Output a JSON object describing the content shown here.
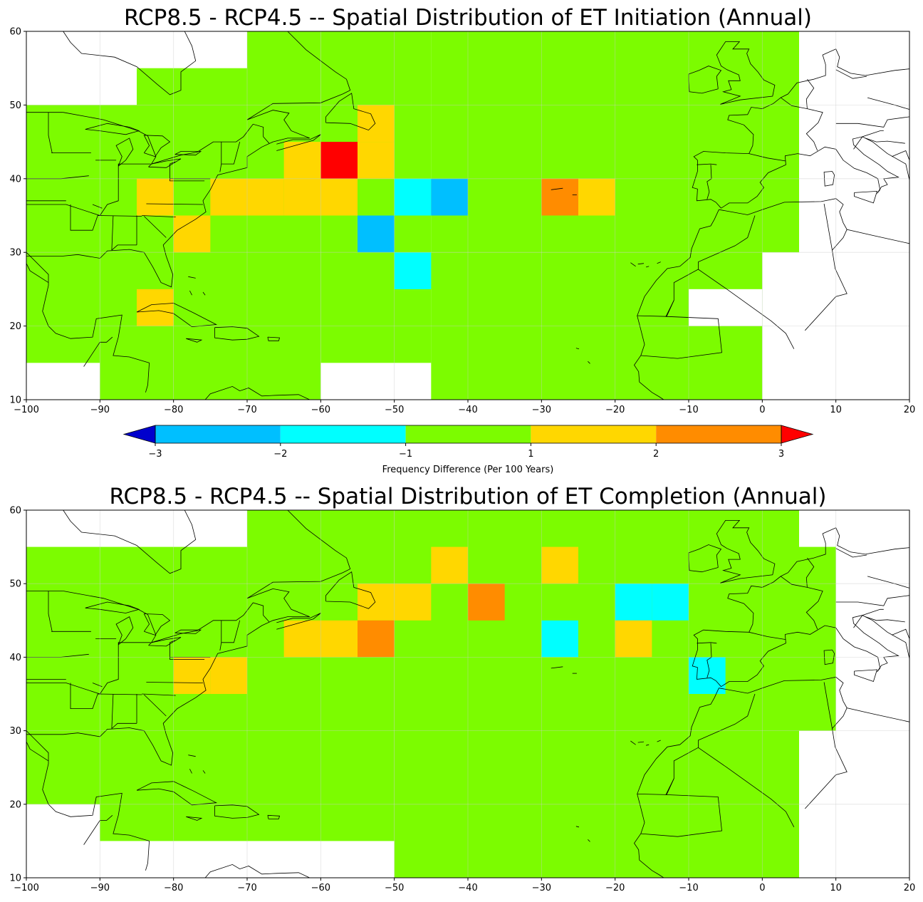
{
  "chart_data": [
    {
      "type": "heatmap",
      "title": "RCP8.5 - RCP4.5 -- Spatial Distribution of ET Initiation (Annual)",
      "xlim": [
        -100,
        20
      ],
      "ylim": [
        10,
        60
      ],
      "cell_size_deg": 5,
      "xticks": [
        "−100",
        "−90",
        "−80",
        "−70",
        "−60",
        "−50",
        "−40",
        "−30",
        "−20",
        "−10",
        "0",
        "10",
        "20"
      ],
      "yticks": [
        "10",
        "20",
        "30",
        "40",
        "50",
        "60"
      ],
      "base_value": 0,
      "domain_bounds": [
        {
          "lon": [
            -100,
            -90
          ],
          "lat": [
            15,
            50
          ]
        },
        {
          "lon": [
            -90,
            -85
          ],
          "lat": [
            10,
            50
          ]
        },
        {
          "lon": [
            -85,
            -80
          ],
          "lat": [
            10,
            55
          ]
        },
        {
          "lon": [
            -80,
            -70
          ],
          "lat": [
            10,
            55
          ]
        },
        {
          "lon": [
            -70,
            -60
          ],
          "lat": [
            10,
            60
          ]
        },
        {
          "lon": [
            -60,
            -45
          ],
          "lat": [
            15,
            60
          ]
        },
        {
          "lon": [
            -45,
            5
          ],
          "lat": [
            30,
            60
          ]
        },
        {
          "lon": [
            -45,
            -10
          ],
          "lat": [
            10,
            30
          ]
        },
        {
          "lon": [
            -10,
            0
          ],
          "lat": [
            10,
            25
          ]
        },
        {
          "lon": [
            -10,
            0
          ],
          "lat": [
            25,
            30
          ]
        }
      ],
      "blank_cells": [
        {
          "lon": [
            -10,
            0
          ],
          "lat": [
            20,
            25
          ]
        }
      ],
      "anomalies": [
        {
          "lon": -60,
          "lat": 40,
          "value": 3.5
        },
        {
          "lon": -65,
          "lat": 40,
          "value": 1.5
        },
        {
          "lon": -55,
          "lat": 40,
          "value": 1.5
        },
        {
          "lon": -55,
          "lat": 45,
          "value": 1.5
        },
        {
          "lon": -85,
          "lat": 35,
          "value": 1.5
        },
        {
          "lon": -75,
          "lat": 35,
          "value": 1.5
        },
        {
          "lon": -70,
          "lat": 35,
          "value": 1.5
        },
        {
          "lon": -65,
          "lat": 35,
          "value": 1.5
        },
        {
          "lon": -60,
          "lat": 35,
          "value": 1.5
        },
        {
          "lon": -80,
          "lat": 30,
          "value": 1.5
        },
        {
          "lon": -85,
          "lat": 20,
          "value": 1.5
        },
        {
          "lon": -50,
          "lat": 35,
          "value": -1.5
        },
        {
          "lon": -45,
          "lat": 35,
          "value": -2.5
        },
        {
          "lon": -55,
          "lat": 30,
          "value": -2.5
        },
        {
          "lon": -50,
          "lat": 25,
          "value": -1.5
        },
        {
          "lon": -30,
          "lat": 35,
          "value": 2.5
        },
        {
          "lon": -25,
          "lat": 35,
          "value": 1.5
        }
      ]
    },
    {
      "type": "heatmap",
      "title": "RCP8.5 - RCP4.5 -- Spatial Distribution of ET Completion (Annual)",
      "xlim": [
        -100,
        20
      ],
      "ylim": [
        10,
        60
      ],
      "cell_size_deg": 5,
      "xticks": [
        "−100",
        "−90",
        "−80",
        "−70",
        "−60",
        "−50",
        "−40",
        "−30",
        "−20",
        "−10",
        "0",
        "10",
        "20"
      ],
      "yticks": [
        "10",
        "20",
        "30",
        "40",
        "50",
        "60"
      ],
      "base_value": 0,
      "domain_bounds": [
        {
          "lon": [
            -100,
            -90
          ],
          "lat": [
            20,
            55
          ]
        },
        {
          "lon": [
            -90,
            -70
          ],
          "lat": [
            15,
            55
          ]
        },
        {
          "lon": [
            -70,
            -50
          ],
          "lat": [
            15,
            60
          ]
        },
        {
          "lon": [
            -50,
            5
          ],
          "lat": [
            10,
            60
          ]
        },
        {
          "lon": [
            5,
            10
          ],
          "lat": [
            30,
            55
          ]
        },
        {
          "lon": [
            0,
            5
          ],
          "lat": [
            25,
            30
          ]
        },
        {
          "lon": [
            -5,
            0
          ],
          "lat": [
            20,
            25
          ]
        }
      ],
      "blank_cells": [],
      "anomalies": [
        {
          "lon": -45,
          "lat": 50,
          "value": 1.5
        },
        {
          "lon": -30,
          "lat": 50,
          "value": 1.5
        },
        {
          "lon": -55,
          "lat": 45,
          "value": 1.5
        },
        {
          "lon": -50,
          "lat": 45,
          "value": 1.5
        },
        {
          "lon": -40,
          "lat": 45,
          "value": 2.5
        },
        {
          "lon": -20,
          "lat": 45,
          "value": -1.5
        },
        {
          "lon": -15,
          "lat": 45,
          "value": -1.5
        },
        {
          "lon": -65,
          "lat": 40,
          "value": 1.5
        },
        {
          "lon": -60,
          "lat": 40,
          "value": 1.5
        },
        {
          "lon": -55,
          "lat": 40,
          "value": 2.5
        },
        {
          "lon": -30,
          "lat": 40,
          "value": -1.5
        },
        {
          "lon": -20,
          "lat": 40,
          "value": 1.5
        },
        {
          "lon": -80,
          "lat": 35,
          "value": 1.5
        },
        {
          "lon": -75,
          "lat": 35,
          "value": 1.5
        },
        {
          "lon": -10,
          "lat": 35,
          "value": -1.5
        }
      ]
    }
  ],
  "colorbar": {
    "label": "Frequency Difference (Per 100 Years)",
    "ticks": [
      "−3",
      "−2",
      "−1",
      "1",
      "2",
      "3"
    ],
    "bins": [
      {
        "range": [
          -3,
          -2
        ],
        "color": "#00bfff"
      },
      {
        "range": [
          -2,
          -1
        ],
        "color": "#00ffff"
      },
      {
        "range": [
          -1,
          1
        ],
        "color": "#7cfc00"
      },
      {
        "range": [
          1,
          2
        ],
        "color": "#ffd700"
      },
      {
        "range": [
          2,
          3
        ],
        "color": "#ff8c00"
      }
    ],
    "under_color": "#0000cd",
    "over_color": "#ff0000"
  }
}
